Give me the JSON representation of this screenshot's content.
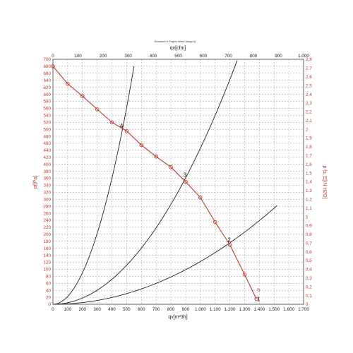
{
  "chart_data": {
    "type": "line",
    "title": "Druckerh.h.Pugbe Werrt (diagr.h)",
    "xlabel_bottom": "qv[m³3h]",
    "xlabel_top": "qv[cfm]",
    "ylabel_left": "pf[Pa]",
    "ylabel_right": "p fs, E[IN H2O]",
    "xlim": [
      0,
      1700
    ],
    "ylim": [
      0,
      700
    ],
    "top_xlim": [
      0,
      1000
    ],
    "right_ylim": [
      0,
      2.8
    ],
    "grid": true,
    "x_ticks_bottom": [
      "0",
      "100",
      "200",
      "300",
      "400",
      "500",
      "600",
      "700",
      "800",
      "900",
      "1.000",
      "1.100",
      "1.200",
      "1.300",
      "1.400",
      "1.500",
      "1.600",
      "1.700"
    ],
    "x_ticks_top": [
      "0",
      "100",
      "200",
      "300",
      "400",
      "500",
      "600",
      "700",
      "800",
      "900",
      "1.000"
    ],
    "y_ticks_left": [
      "0",
      "20",
      "40",
      "60",
      "80",
      "100",
      "120",
      "140",
      "160",
      "180",
      "200",
      "220",
      "240",
      "260",
      "280",
      "300",
      "320",
      "340",
      "360",
      "380",
      "400",
      "420",
      "440",
      "460",
      "480",
      "500",
      "520",
      "540",
      "560",
      "580",
      "600",
      "620",
      "640",
      "660",
      "680",
      "700"
    ],
    "y_ticks_right": [
      "0",
      "0,1",
      "0,2",
      "0,3",
      "0,4",
      "0,5",
      "0,6",
      "0,7",
      "0,8",
      "0,9",
      "1",
      "1,1",
      "1,2",
      "1,3",
      "1,4",
      "1,5",
      "1,6",
      "1,7",
      "1,8",
      "1,9",
      "2",
      "2,1",
      "2,2",
      "2,3",
      "2,4",
      "2,5",
      "2,6",
      "2,7",
      "2,8"
    ],
    "fan_curve": {
      "color": "#c0392b",
      "x": [
        0,
        100,
        200,
        300,
        400,
        500,
        600,
        700,
        800,
        900,
        1000,
        1100,
        1200,
        1300,
        1380
      ],
      "y": [
        680,
        630,
        595,
        557,
        520,
        495,
        455,
        422,
        392,
        350,
        305,
        235,
        170,
        85,
        15
      ]
    },
    "system_curves": [
      {
        "color": "#222222",
        "k": 0.00225,
        "x_max": 550
      },
      {
        "color": "#222222",
        "k": 0.000446,
        "x_max": 1250
      },
      {
        "color": "#222222",
        "k": 0.000122,
        "x_max": 1520
      }
    ],
    "operating_points": [
      {
        "label": "4",
        "x": 470,
        "y": 500
      },
      {
        "label": "3",
        "x": 900,
        "y": 360
      },
      {
        "label": "2",
        "x": 1200,
        "y": 175
      },
      {
        "label": "1",
        "x": 1400,
        "y": 5
      }
    ],
    "annotation": "d"
  }
}
